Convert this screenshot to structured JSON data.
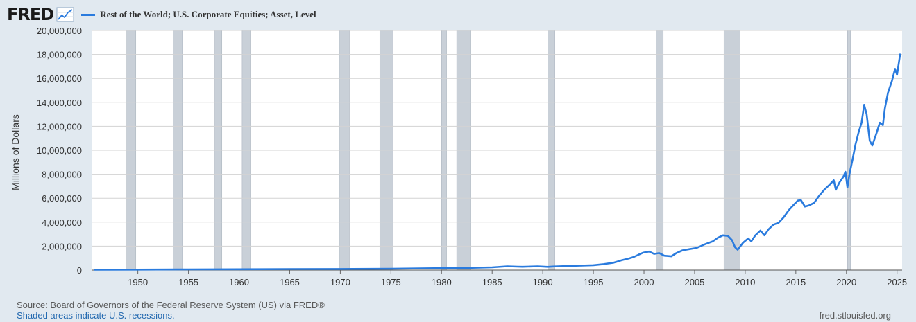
{
  "header": {
    "logo_text": "FRED",
    "legend_label": "Rest of the World; U.S. Corporate Equities; Asset, Level"
  },
  "footer": {
    "source": "Source: Board of Governors of the Federal Reserve System (US) via FRED®",
    "note": "Shaded areas indicate U.S. recessions.",
    "url": "fred.stlouisfed.org"
  },
  "colors": {
    "series": "#2a7bde",
    "recession": "#c9d0d8",
    "plot_bg": "#ffffff",
    "grid": "#d3d3d3"
  },
  "chart_data": {
    "type": "line",
    "title": "",
    "xlabel": "",
    "ylabel": "Millions of Dollars",
    "xlim": [
      1945.5,
      2025.5
    ],
    "ylim": [
      0,
      20000000
    ],
    "grid": true,
    "legend_position": "top-left",
    "x_ticks": [
      1950,
      1955,
      1960,
      1965,
      1970,
      1975,
      1980,
      1985,
      1990,
      1995,
      2000,
      2005,
      2010,
      2015,
      2020,
      2025
    ],
    "y_ticks": [
      0,
      2000000,
      4000000,
      6000000,
      8000000,
      10000000,
      12000000,
      14000000,
      16000000,
      18000000,
      20000000
    ],
    "y_tick_labels": [
      "0",
      "2,000,000",
      "4,000,000",
      "6,000,000",
      "8,000,000",
      "10,000,000",
      "12,000,000",
      "14,000,000",
      "16,000,000",
      "18,000,000",
      "20,000,000"
    ],
    "recessions": [
      [
        1948.9,
        1949.8
      ],
      [
        1953.5,
        1954.4
      ],
      [
        1957.6,
        1958.3
      ],
      [
        1960.3,
        1961.1
      ],
      [
        1969.9,
        1970.9
      ],
      [
        1973.9,
        1975.2
      ],
      [
        1980.0,
        1980.5
      ],
      [
        1981.5,
        1982.9
      ],
      [
        1990.5,
        1991.2
      ],
      [
        2001.2,
        2001.9
      ],
      [
        2007.9,
        2009.5
      ],
      [
        2020.1,
        2020.4
      ]
    ],
    "series": [
      {
        "name": "Rest of the World; U.S. Corporate Equities; Asset, Level",
        "x": [
          1945.75,
          1950,
          1955,
          1960,
          1965,
          1970,
          1975,
          1980,
          1983,
          1985,
          1986.5,
          1987.5,
          1988,
          1989.5,
          1990.5,
          1991,
          1993,
          1995,
          1996,
          1997,
          1997.8,
          1998.5,
          1999,
          1999.5,
          1999.9,
          2000.5,
          2001,
          2001.5,
          2002,
          2002.7,
          2003.2,
          2003.8,
          2004.5,
          2005.2,
          2006,
          2006.8,
          2007.3,
          2007.8,
          2008.3,
          2008.7,
          2009.0,
          2009.25,
          2009.8,
          2010.3,
          2010.6,
          2011,
          2011.5,
          2011.9,
          2012.3,
          2012.8,
          2013.3,
          2013.8,
          2014.3,
          2014.8,
          2015.2,
          2015.5,
          2015.9,
          2016.3,
          2016.8,
          2017.3,
          2017.8,
          2018.3,
          2018.75,
          2018.95,
          2019.3,
          2019.7,
          2019.9,
          2020.1,
          2020.3,
          2020.6,
          2020.9,
          2021.2,
          2021.5,
          2021.75,
          2022,
          2022.3,
          2022.55,
          2022.8,
          2023.0,
          2023.3,
          2023.6,
          2023.8,
          2024.1,
          2024.5,
          2024.8,
          2025.0,
          2025.3
        ],
        "values": [
          30000,
          40000,
          55000,
          70000,
          85000,
          95000,
          110000,
          160000,
          190000,
          230000,
          320000,
          290000,
          280000,
          320000,
          270000,
          300000,
          360000,
          410000,
          500000,
          620000,
          820000,
          970000,
          1100000,
          1300000,
          1450000,
          1550000,
          1350000,
          1420000,
          1200000,
          1150000,
          1420000,
          1650000,
          1750000,
          1850000,
          2150000,
          2400000,
          2700000,
          2900000,
          2850000,
          2500000,
          1900000,
          1700000,
          2300000,
          2650000,
          2400000,
          2900000,
          3300000,
          2900000,
          3400000,
          3800000,
          3950000,
          4400000,
          5000000,
          5450000,
          5800000,
          5850000,
          5300000,
          5400000,
          5600000,
          6200000,
          6700000,
          7100000,
          7500000,
          6700000,
          7300000,
          7800000,
          8200000,
          6900000,
          8000000,
          9200000,
          10500000,
          11500000,
          12300000,
          13800000,
          13000000,
          10800000,
          10400000,
          11000000,
          11500000,
          12300000,
          12100000,
          13500000,
          14800000,
          15800000,
          16800000,
          16300000,
          18000000
        ]
      }
    ]
  }
}
